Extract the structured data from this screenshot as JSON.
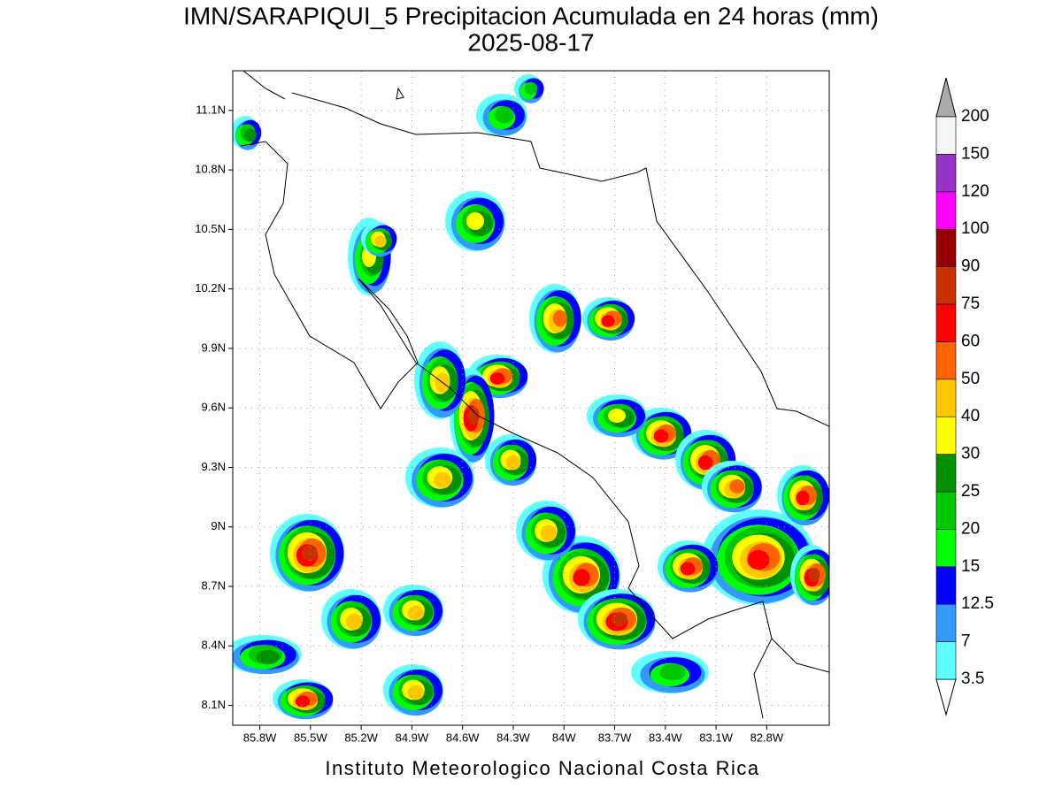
{
  "title": "IMN/SARAPIQUI_5 Precipitacion Acumulada en 24 horas (mm)",
  "date": "2025-08-17",
  "footer": "Instituto Meteorologico Nacional Costa Rica",
  "map": {
    "xlim": [
      -85.96,
      -82.43
    ],
    "ylim": [
      8.0,
      11.3
    ],
    "xticks": [
      {
        "value": -85.8,
        "label": "85.8W"
      },
      {
        "value": -85.5,
        "label": "85.5W"
      },
      {
        "value": -85.2,
        "label": "85.2W"
      },
      {
        "value": -84.9,
        "label": "84.9W"
      },
      {
        "value": -84.6,
        "label": "84.6W"
      },
      {
        "value": -84.3,
        "label": "84.3W"
      },
      {
        "value": -84.0,
        "label": "84W"
      },
      {
        "value": -83.7,
        "label": "83.7W"
      },
      {
        "value": -83.4,
        "label": "83.4W"
      },
      {
        "value": -83.1,
        "label": "83.1W"
      },
      {
        "value": -82.8,
        "label": "82.8W"
      }
    ],
    "yticks": [
      {
        "value": 8.1,
        "label": "8.1N"
      },
      {
        "value": 8.4,
        "label": "8.4N"
      },
      {
        "value": 8.7,
        "label": "8.7N"
      },
      {
        "value": 9.0,
        "label": "9N"
      },
      {
        "value": 9.3,
        "label": "9.3N"
      },
      {
        "value": 9.6,
        "label": "9.6N"
      },
      {
        "value": 9.9,
        "label": "9.9N"
      },
      {
        "value": 10.2,
        "label": "10.2N"
      },
      {
        "value": 10.5,
        "label": "10.5N"
      },
      {
        "value": 10.8,
        "label": "10.8N"
      },
      {
        "value": 11.1,
        "label": "11.1N"
      }
    ],
    "grid": true
  },
  "colorbar": {
    "levels": [
      3.5,
      7,
      12.5,
      15,
      20,
      25,
      30,
      40,
      50,
      60,
      75,
      90,
      100,
      120,
      150,
      200
    ],
    "colors": [
      "#60ffff",
      "#3399ff",
      "#0000ff",
      "#00ff00",
      "#00c800",
      "#009000",
      "#ffff00",
      "#ffc800",
      "#ff6400",
      "#ff0000",
      "#c83200",
      "#960000",
      "#ff00ff",
      "#9632c8",
      "#f5f5f5"
    ],
    "under_color": "#ffffff",
    "over_color": "#aaaaaa"
  }
}
